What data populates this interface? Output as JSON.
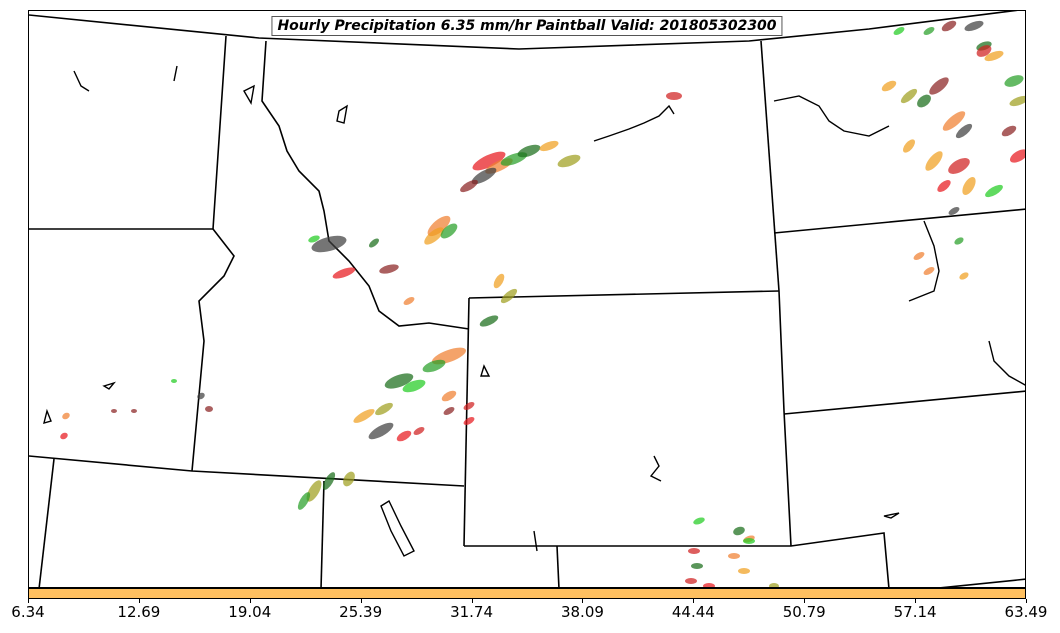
{
  "map": {
    "title": "Hourly Precipitation 6.35 mm/hr Paintball Valid: 201805302300"
  },
  "colorbar": {
    "color": "#ffc060",
    "ticks": [
      "6.34",
      "12.69",
      "19.04",
      "25.39",
      "31.74",
      "38.09",
      "44.44",
      "50.79",
      "57.14",
      "63.49"
    ]
  },
  "member_colors": [
    "#e8191f",
    "#8b2323",
    "#f08030",
    "#28a028",
    "#1a6e1a",
    "#f0a020",
    "#a0a020",
    "#404040",
    "#22cc22",
    "#d02020"
  ]
}
